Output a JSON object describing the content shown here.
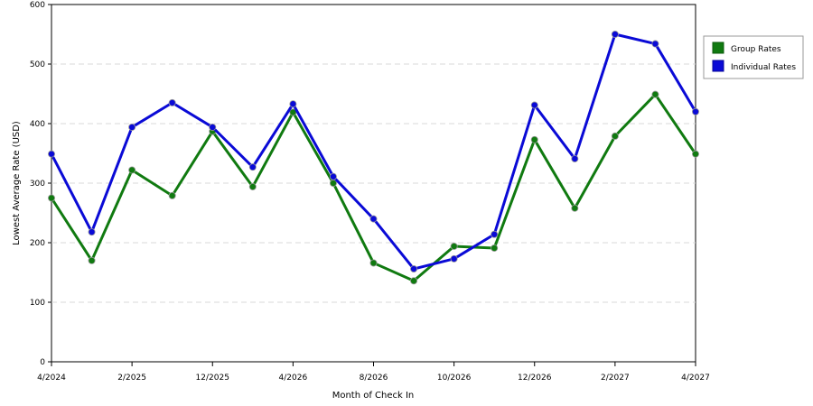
{
  "chart_data": {
    "type": "line",
    "xlabel": "Month of Check In",
    "ylabel": "Lowest Average Rate (USD)",
    "ylim": [
      0,
      600
    ],
    "yticks": [
      0,
      100,
      200,
      300,
      400,
      500,
      600
    ],
    "x_tick_labels": [
      "4/2024",
      "2/2025",
      "12/2025",
      "4/2026",
      "8/2026",
      "10/2026",
      "12/2026",
      "2/2027",
      "4/2027"
    ],
    "x_tick_positions": [
      0,
      2,
      4,
      6,
      8,
      10,
      12,
      14,
      16
    ],
    "grid": "horizontal-dashed",
    "legend_placement": "right",
    "x_points": 17,
    "series": [
      {
        "name": "Group Rates",
        "color": "#107a10",
        "values": [
          275,
          170,
          322,
          279,
          387,
          294,
          419,
          300,
          166,
          136,
          194,
          191,
          373,
          258,
          379,
          449,
          349
        ]
      },
      {
        "name": "Individual Rates",
        "color": "#0a0ad6",
        "values": [
          349,
          218,
          394,
          435,
          394,
          327,
          433,
          311,
          240,
          156,
          173,
          214,
          431,
          341,
          550,
          534,
          420
        ]
      }
    ]
  }
}
